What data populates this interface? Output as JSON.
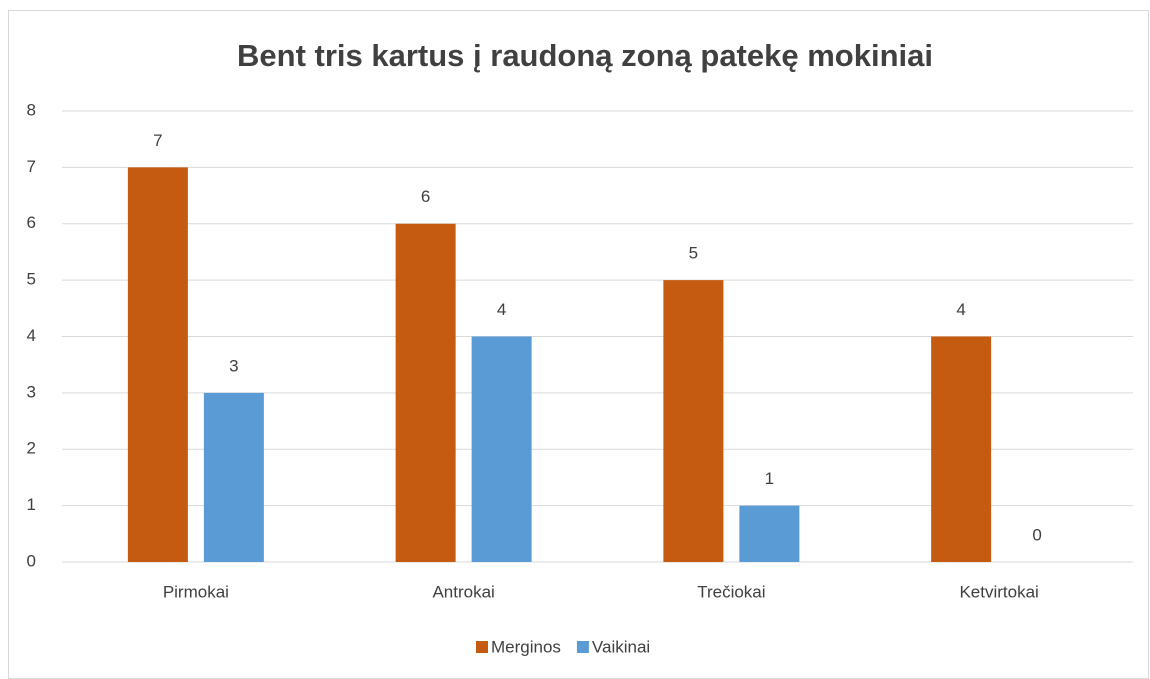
{
  "chart_data": {
    "type": "bar",
    "title": "Bent tris kartus į raudoną zoną patekę mokiniai",
    "categories": [
      "Pirmokai",
      "Antrokai",
      "Trečiokai",
      "Ketvirtokai"
    ],
    "series": [
      {
        "name": "Merginos",
        "color": "#c55a11",
        "values": [
          7,
          6,
          5,
          4
        ]
      },
      {
        "name": "Vaikinai",
        "color": "#5b9bd5",
        "values": [
          3,
          4,
          1,
          0
        ]
      }
    ],
    "ylim": [
      0,
      8
    ],
    "yticks": [
      0,
      1,
      2,
      3,
      4,
      5,
      6,
      7,
      8
    ],
    "grid": true,
    "legend": "bottom"
  }
}
